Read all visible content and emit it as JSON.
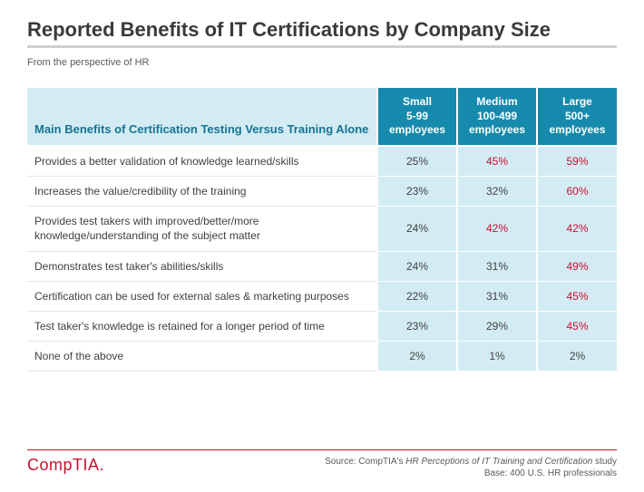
{
  "title": "Reported Benefits of IT Certifications by Company Size",
  "subtitle": "From the perspective of HR",
  "table": {
    "header_label": "Main Benefits of Certification Testing Versus Training Alone",
    "columns": [
      {
        "name": "Small",
        "range": "5-99",
        "unit": "employees"
      },
      {
        "name": "Medium",
        "range": "100-499",
        "unit": "employees"
      },
      {
        "name": "Large",
        "range": "500+",
        "unit": "employees"
      }
    ],
    "rows": [
      {
        "label": "Provides a better validation of knowledge learned/skills",
        "values": [
          "25%",
          "45%",
          "59%"
        ],
        "highlight": [
          false,
          true,
          true
        ]
      },
      {
        "label": "Increases the value/credibility of the training",
        "values": [
          "23%",
          "32%",
          "60%"
        ],
        "highlight": [
          false,
          false,
          true
        ]
      },
      {
        "label": "Provides test takers with improved/better/more knowledge/understanding of the subject matter",
        "values": [
          "24%",
          "42%",
          "42%"
        ],
        "highlight": [
          false,
          true,
          true
        ]
      },
      {
        "label": "Demonstrates test taker's abilities/skills",
        "values": [
          "24%",
          "31%",
          "49%"
        ],
        "highlight": [
          false,
          false,
          true
        ]
      },
      {
        "label": "Certification can be used for external sales & marketing purposes",
        "values": [
          "22%",
          "31%",
          "45%"
        ],
        "highlight": [
          false,
          false,
          true
        ]
      },
      {
        "label": "Test taker's knowledge is retained for a longer period of time",
        "values": [
          "23%",
          "29%",
          "45%"
        ],
        "highlight": [
          false,
          false,
          true
        ]
      },
      {
        "label": "None of the above",
        "values": [
          "2%",
          "1%",
          "2%"
        ],
        "highlight": [
          false,
          false,
          false
        ]
      }
    ],
    "colors": {
      "header_bg": "#168aad",
      "header_text": "#ffffff",
      "label_header_bg": "#d3ecf4",
      "label_header_text": "#157393",
      "cell_bg": "#d3ecf4",
      "cell_text": "#404040",
      "highlight_text": "#c8102e",
      "row_border": "#e6e6e6"
    }
  },
  "footer": {
    "logo_text": "CompTIA",
    "source_prefix": "Source: CompTIA's ",
    "source_study": "HR Perceptions of IT Training and Certification",
    "source_suffix": " study",
    "base": "Base: 400 U.S. HR professionals",
    "accent_color": "#c8102e"
  }
}
